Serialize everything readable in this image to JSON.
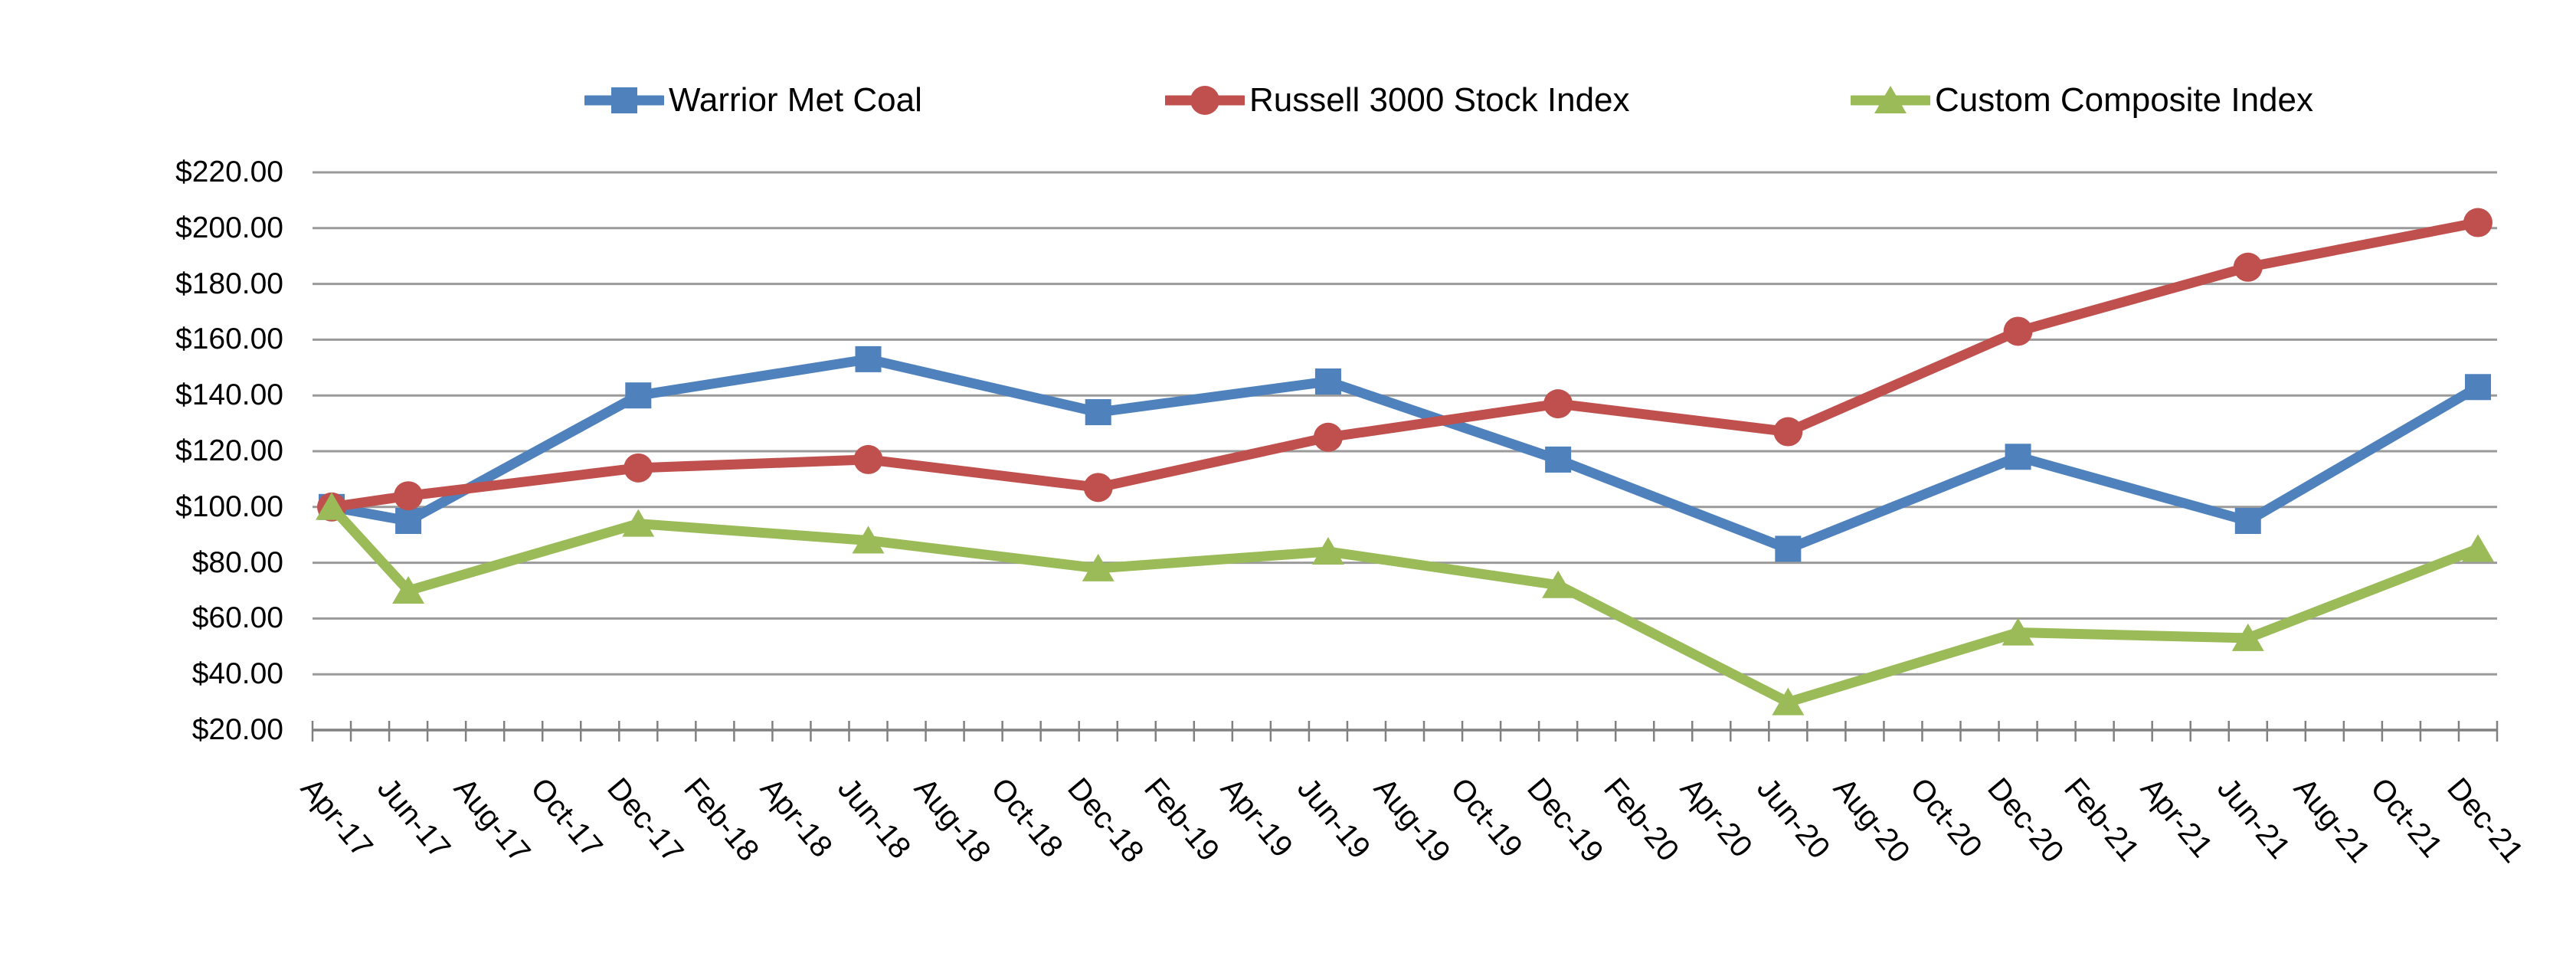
{
  "chart_data": {
    "type": "line",
    "title": "",
    "xlabel": "",
    "ylabel": "",
    "y_axis": {
      "min": 20,
      "max": 220,
      "step": 20,
      "tick_labels": [
        "$220.00",
        "$200.00",
        "$180.00",
        "$160.00",
        "$140.00",
        "$120.00",
        "$100.00",
        "$80.00",
        "$60.00",
        "$40.00",
        "$20.00"
      ]
    },
    "x_axis": {
      "months_total": 57,
      "label_interval_months": 2,
      "tick_labels": [
        "Apr-17",
        "Jun-17",
        "Aug-17",
        "Oct-17",
        "Dec-17",
        "Feb-18",
        "Apr-18",
        "Jun-18",
        "Aug-18",
        "Oct-18",
        "Dec-18",
        "Feb-19",
        "Apr-19",
        "Jun-19",
        "Aug-19",
        "Oct-19",
        "Dec-19",
        "Feb-20",
        "Apr-20",
        "Jun-20",
        "Aug-20",
        "Oct-20",
        "Dec-20",
        "Feb-21",
        "Apr-21",
        "Jun-21",
        "Aug-21",
        "Oct-21",
        "Dec-21"
      ]
    },
    "point_labels": [
      "Apr-17",
      "Jun-17",
      "Dec-17",
      "Jun-18",
      "Dec-18",
      "Jun-19",
      "Dec-19",
      "Jun-20",
      "Dec-20",
      "Jun-21",
      "Dec-21"
    ],
    "point_month_offsets": [
      0,
      2,
      8,
      14,
      20,
      26,
      32,
      38,
      44,
      50,
      56
    ],
    "series": [
      {
        "name": "Warrior Met Coal",
        "color": "#4F81BD",
        "marker": "square",
        "values": [
          100,
          95,
          140,
          153,
          134,
          145,
          117,
          85,
          118,
          95,
          143
        ]
      },
      {
        "name": "Russell 3000 Stock Index",
        "color": "#C0504D",
        "marker": "circle",
        "values": [
          100,
          104,
          114,
          117,
          107,
          125,
          137,
          127,
          163,
          186,
          202
        ]
      },
      {
        "name": "Custom Composite Index",
        "color": "#9BBB59",
        "marker": "triangle",
        "values": [
          100,
          70,
          94,
          88,
          78,
          84,
          72,
          30,
          55,
          53,
          85
        ]
      }
    ],
    "legend_position": "top",
    "grid": "horizontal",
    "gridline_color": "#9a9a9a",
    "axis_color": "#808080",
    "text_color": "#000000"
  }
}
